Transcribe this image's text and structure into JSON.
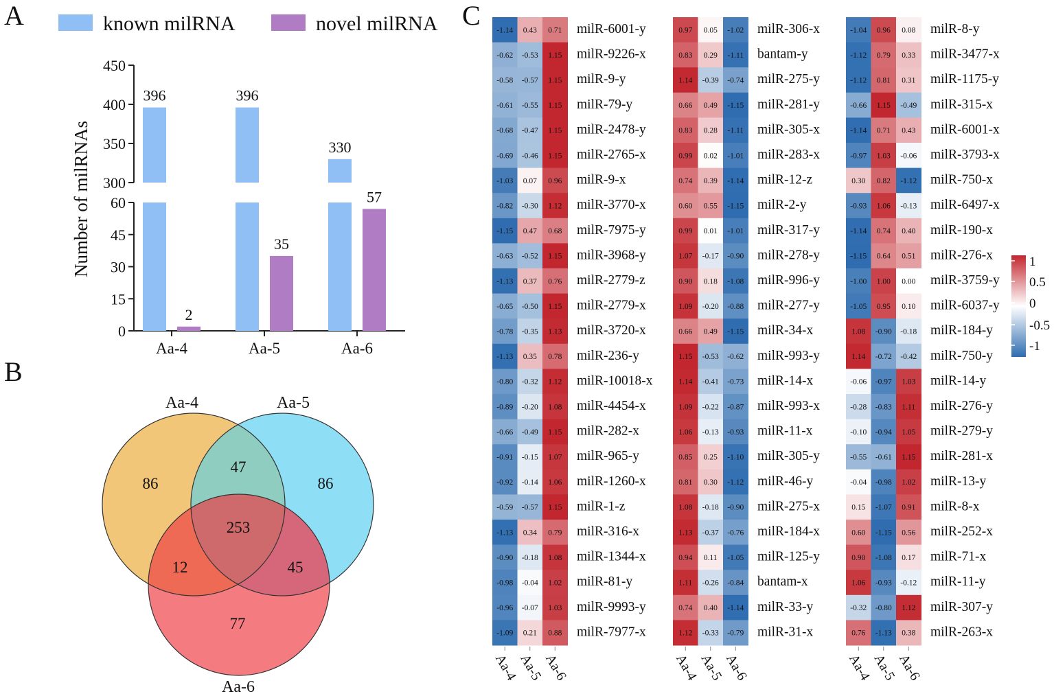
{
  "panel_labels": {
    "a": "A",
    "b": "B",
    "c": "C"
  },
  "colors": {
    "known": "#8fbff5",
    "novel": "#b07cc4",
    "venn_a4": "#f2c679",
    "venn_a5": "#8edff5",
    "venn_a6": "#f47b80",
    "venn_a4_a5": "#8ecdbf",
    "venn_a4_a6": "#ef6a55",
    "venn_a5_a6": "#d6677a",
    "venn_all": "#cf6a6c",
    "heat_high": "#c2272f",
    "heat_low": "#2f6db0"
  },
  "chart_data": [
    {
      "type": "bar",
      "title": "",
      "xlabel": "",
      "ylabel": "Number of milRNAs",
      "categories": [
        "Aa-4",
        "Aa-5",
        "Aa-6"
      ],
      "series": [
        {
          "name": "known milRNA",
          "values": [
            396,
            396,
            330
          ]
        },
        {
          "name": "novel milRNA",
          "values": [
            2,
            35,
            57
          ]
        }
      ],
      "y_axis_break": {
        "lower": [
          0,
          60
        ],
        "upper": [
          300,
          450
        ]
      },
      "yticks_lower": [
        0,
        15,
        30,
        45,
        60
      ],
      "yticks_upper": [
        300,
        350,
        400,
        450
      ],
      "legend": "top"
    },
    {
      "type": "venn",
      "sets": [
        "Aa-4",
        "Aa-5",
        "Aa-6"
      ],
      "regions": {
        "only_a4": 86,
        "only_a5": 86,
        "only_a6": 77,
        "a4_a5": 47,
        "a4_a6": 12,
        "a5_a6": 45,
        "all": 253
      }
    },
    {
      "type": "heatmap",
      "columns": [
        "Aa-4",
        "Aa-5",
        "Aa-6"
      ],
      "colorbar": {
        "range": [
          -1.15,
          1.15
        ],
        "ticks": [
          "1",
          "0.5",
          "0",
          "-0.5",
          "-1"
        ]
      },
      "blocks": [
        {
          "rows": [
            {
              "name": "milR-6001-y",
              "values": [
                -1.14,
                0.43,
                0.71
              ]
            },
            {
              "name": "milR-9226-x",
              "values": [
                -0.62,
                -0.53,
                1.15
              ]
            },
            {
              "name": "milR-9-y",
              "values": [
                -0.58,
                -0.57,
                1.15
              ]
            },
            {
              "name": "milR-79-y",
              "values": [
                -0.61,
                -0.55,
                1.15
              ]
            },
            {
              "name": "milR-2478-y",
              "values": [
                -0.68,
                -0.47,
                1.15
              ]
            },
            {
              "name": "milR-2765-x",
              "values": [
                -0.69,
                -0.46,
                1.15
              ]
            },
            {
              "name": "milR-9-x",
              "values": [
                -1.03,
                0.07,
                0.96
              ]
            },
            {
              "name": "milR-3770-x",
              "values": [
                -0.82,
                -0.3,
                1.12
              ]
            },
            {
              "name": "milR-7975-y",
              "values": [
                -1.15,
                0.47,
                0.68
              ]
            },
            {
              "name": "milR-3968-y",
              "values": [
                -0.63,
                -0.52,
                1.15
              ]
            },
            {
              "name": "milR-2779-z",
              "values": [
                -1.13,
                0.37,
                0.76
              ]
            },
            {
              "name": "milR-2779-x",
              "values": [
                -0.65,
                -0.5,
                1.15
              ]
            },
            {
              "name": "milR-3720-x",
              "values": [
                -0.78,
                -0.35,
                1.13
              ]
            },
            {
              "name": "milR-236-y",
              "values": [
                -1.13,
                0.35,
                0.78
              ]
            },
            {
              "name": "milR-10018-x",
              "values": [
                -0.8,
                -0.32,
                1.12
              ]
            },
            {
              "name": "milR-4454-x",
              "values": [
                -0.89,
                -0.2,
                1.08
              ]
            },
            {
              "name": "milR-282-x",
              "values": [
                -0.66,
                -0.49,
                1.15
              ]
            },
            {
              "name": "milR-965-y",
              "values": [
                -0.91,
                -0.15,
                1.07
              ]
            },
            {
              "name": "milR-1260-x",
              "values": [
                -0.92,
                -0.14,
                1.06
              ]
            },
            {
              "name": "milR-1-z",
              "values": [
                -0.59,
                -0.57,
                1.15
              ]
            },
            {
              "name": "milR-316-x",
              "values": [
                -1.13,
                0.34,
                0.79
              ]
            },
            {
              "name": "milR-1344-x",
              "values": [
                -0.9,
                -0.18,
                1.08
              ]
            },
            {
              "name": "milR-81-y",
              "values": [
                -0.98,
                -0.04,
                1.02
              ]
            },
            {
              "name": "milR-9993-y",
              "values": [
                -0.96,
                -0.07,
                1.03
              ]
            },
            {
              "name": "milR-7977-x",
              "values": [
                -1.09,
                0.21,
                0.88
              ]
            }
          ]
        },
        {
          "rows": [
            {
              "name": "milR-306-x",
              "values": [
                0.97,
                0.05,
                -1.02
              ]
            },
            {
              "name": "bantam-y",
              "values": [
                0.83,
                0.29,
                -1.11
              ]
            },
            {
              "name": "milR-275-y",
              "values": [
                1.14,
                -0.39,
                -0.74
              ]
            },
            {
              "name": "milR-281-y",
              "values": [
                0.66,
                0.49,
                -1.15
              ]
            },
            {
              "name": "milR-305-x",
              "values": [
                0.83,
                0.28,
                -1.11
              ]
            },
            {
              "name": "milR-283-x",
              "values": [
                0.99,
                0.02,
                -1.01
              ]
            },
            {
              "name": "milR-12-z",
              "values": [
                0.74,
                0.39,
                -1.14
              ]
            },
            {
              "name": "milR-2-y",
              "values": [
                0.6,
                0.55,
                -1.15
              ]
            },
            {
              "name": "milR-317-y",
              "values": [
                0.99,
                0.01,
                -1.01
              ]
            },
            {
              "name": "milR-278-y",
              "values": [
                1.07,
                -0.17,
                -0.9
              ]
            },
            {
              "name": "milR-996-y",
              "values": [
                0.9,
                0.18,
                -1.08
              ]
            },
            {
              "name": "milR-277-y",
              "values": [
                1.09,
                -0.2,
                -0.88
              ]
            },
            {
              "name": "milR-34-x",
              "values": [
                0.66,
                0.49,
                -1.15
              ]
            },
            {
              "name": "milR-993-y",
              "values": [
                1.15,
                -0.53,
                -0.62
              ]
            },
            {
              "name": "milR-14-x",
              "values": [
                1.14,
                -0.41,
                -0.73
              ]
            },
            {
              "name": "milR-993-x",
              "values": [
                1.09,
                -0.22,
                -0.87
              ]
            },
            {
              "name": "milR-11-x",
              "values": [
                1.06,
                -0.13,
                -0.93
              ]
            },
            {
              "name": "milR-305-y",
              "values": [
                0.85,
                0.25,
                -1.1
              ]
            },
            {
              "name": "milR-46-y",
              "values": [
                0.81,
                0.3,
                -1.12
              ]
            },
            {
              "name": "milR-275-x",
              "values": [
                1.08,
                -0.18,
                -0.9
              ]
            },
            {
              "name": "milR-184-x",
              "values": [
                1.13,
                -0.37,
                -0.76
              ]
            },
            {
              "name": "milR-125-y",
              "values": [
                0.94,
                0.11,
                -1.05
              ]
            },
            {
              "name": "bantam-x",
              "values": [
                1.11,
                -0.26,
                -0.84
              ]
            },
            {
              "name": "milR-33-y",
              "values": [
                0.74,
                0.4,
                -1.14
              ]
            },
            {
              "name": "milR-31-x",
              "values": [
                1.12,
                -0.33,
                -0.79
              ]
            }
          ]
        },
        {
          "rows": [
            {
              "name": "milR-8-y",
              "values": [
                -1.04,
                0.96,
                0.08
              ]
            },
            {
              "name": "milR-3477-x",
              "values": [
                -1.12,
                0.79,
                0.33
              ]
            },
            {
              "name": "milR-1175-y",
              "values": [
                -1.12,
                0.81,
                0.31
              ]
            },
            {
              "name": "milR-315-x",
              "values": [
                -0.66,
                1.15,
                -0.49
              ]
            },
            {
              "name": "milR-6001-x",
              "values": [
                -1.14,
                0.71,
                0.43
              ]
            },
            {
              "name": "milR-3793-x",
              "values": [
                -0.97,
                1.03,
                -0.06
              ]
            },
            {
              "name": "milR-750-x",
              "values": [
                0.3,
                0.82,
                -1.12
              ]
            },
            {
              "name": "milR-6497-x",
              "values": [
                -0.93,
                1.06,
                -0.13
              ]
            },
            {
              "name": "milR-190-x",
              "values": [
                -1.14,
                0.74,
                0.4
              ]
            },
            {
              "name": "milR-276-x",
              "values": [
                -1.15,
                0.64,
                0.51
              ]
            },
            {
              "name": "milR-3759-y",
              "values": [
                -1.0,
                1.0,
                0.0
              ]
            },
            {
              "name": "milR-6037-y",
              "values": [
                -1.05,
                0.95,
                0.1
              ]
            },
            {
              "name": "milR-184-y",
              "values": [
                1.08,
                -0.9,
                -0.18
              ]
            },
            {
              "name": "milR-750-y",
              "values": [
                1.14,
                -0.72,
                -0.42
              ]
            },
            {
              "name": "milR-14-y",
              "values": [
                -0.06,
                -0.97,
                1.03
              ]
            },
            {
              "name": "milR-276-y",
              "values": [
                -0.28,
                -0.83,
                1.11
              ]
            },
            {
              "name": "milR-279-y",
              "values": [
                -0.1,
                -0.94,
                1.05
              ]
            },
            {
              "name": "milR-281-x",
              "values": [
                -0.55,
                -0.61,
                1.15
              ]
            },
            {
              "name": "milR-13-y",
              "values": [
                -0.04,
                -0.98,
                1.02
              ]
            },
            {
              "name": "milR-8-x",
              "values": [
                0.15,
                -1.07,
                0.91
              ]
            },
            {
              "name": "milR-252-x",
              "values": [
                0.6,
                -1.15,
                0.56
              ]
            },
            {
              "name": "milR-71-x",
              "values": [
                0.9,
                -1.08,
                0.17
              ]
            },
            {
              "name": "milR-11-y",
              "values": [
                1.06,
                -0.93,
                -0.12
              ]
            },
            {
              "name": "milR-307-y",
              "values": [
                -0.32,
                -0.8,
                1.12
              ]
            },
            {
              "name": "milR-263-x",
              "values": [
                0.76,
                -1.13,
                0.38
              ]
            }
          ]
        }
      ]
    }
  ]
}
